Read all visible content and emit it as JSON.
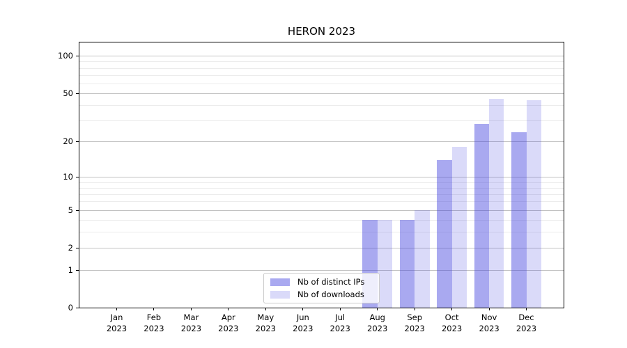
{
  "title": "HERON 2023",
  "colors": {
    "background": "#ffffff",
    "spine": "#000000",
    "text": "#000000",
    "grid_major": "#c2c2c2",
    "grid_minor": "#ececec",
    "legend_border": "#cccccc",
    "legend_bg": "rgba(255,255,255,0.8)"
  },
  "chart_data": {
    "type": "bar",
    "title": "HERON 2023",
    "categories": [
      "Jan",
      "Feb",
      "Mar",
      "Apr",
      "May",
      "Jun",
      "Jul",
      "Aug",
      "Sep",
      "Oct",
      "Nov",
      "Dec"
    ],
    "year_label": "2023",
    "series": [
      {
        "name": "Nb of distinct IPs",
        "color": "rgba(60,60,221,0.44)",
        "values": [
          0,
          0,
          0,
          0,
          0,
          0,
          0,
          4,
          4,
          14,
          28,
          24
        ]
      },
      {
        "name": "Nb of downloads",
        "color": "rgba(60,60,221,0.19)",
        "values": [
          0,
          0,
          0,
          0,
          0,
          0,
          0,
          4,
          5,
          18,
          45,
          44
        ]
      }
    ],
    "xlabel": "",
    "ylabel": "",
    "yscale": "log1p",
    "ylim": [
      0,
      128
    ],
    "y_ticks": [
      0,
      1,
      2,
      5,
      10,
      20,
      50,
      100
    ],
    "y_minor_gridlines": [
      3,
      4,
      6,
      7,
      8,
      9,
      30,
      40,
      60,
      70,
      80,
      90
    ],
    "grid": true,
    "bar_group_width_frac": 0.8,
    "legend_position": "lower center"
  }
}
